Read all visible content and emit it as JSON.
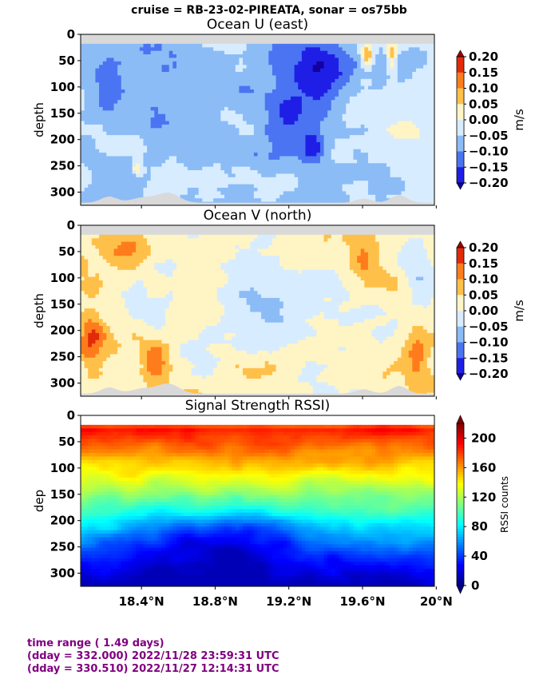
{
  "suptitle": "cruise = RB-23-02-PIREATA,  sonar = os75bb",
  "chart_data": [
    {
      "type": "heatmap",
      "title": "Ocean U (east)",
      "ylabel": "depth",
      "colorbar_label": "m/s",
      "colormap": "blue-white-red (diverging)",
      "ylim": [
        325,
        0
      ],
      "yticks": [
        0,
        50,
        100,
        150,
        200,
        250,
        300
      ],
      "xlim": [
        18.07,
        19.99
      ],
      "clim": [
        -0.2,
        0.2
      ],
      "colorbar_ticks": [
        "0.20",
        "0.15",
        "0.10",
        "0.05",
        "0.00",
        "−0.05",
        "−0.10",
        "−0.15",
        "−0.20"
      ],
      "colorbar_colors": [
        "#9e0000",
        "#e22a0a",
        "#ff7c1c",
        "#ffc04a",
        "#fff4c4",
        "#d8ecff",
        "#8cbcf6",
        "#4a74f2",
        "#1f1ee6",
        "#14009e"
      ],
      "features": "mostly weak westward flow (-0.05 to -0.10 m/s) with a strong westward core (< -0.15 m/s) near 19.3-19.4 N above 150 m and isolated eastward patches near 19.8 N"
    },
    {
      "type": "heatmap",
      "title": "Ocean V (north)",
      "ylabel": "depth",
      "colorbar_label": "m/s",
      "colormap": "blue-white-red (diverging)",
      "ylim": [
        325,
        0
      ],
      "yticks": [
        0,
        50,
        100,
        150,
        200,
        250,
        300
      ],
      "xlim": [
        18.07,
        19.99
      ],
      "clim": [
        -0.2,
        0.2
      ],
      "colorbar_ticks": [
        "0.20",
        "0.15",
        "0.10",
        "0.05",
        "0.00",
        "−0.05",
        "−0.10",
        "−0.15",
        "−0.20"
      ],
      "colorbar_colors": [
        "#9e0000",
        "#e22a0a",
        "#ff7c1c",
        "#ffc04a",
        "#fff4c4",
        "#d8ecff",
        "#8cbcf6",
        "#4a74f2",
        "#1f1ee6",
        "#14009e"
      ],
      "features": "northward flow (0.05-0.15 m/s) dominant west of 18.8 N and near 19.6-19.8 N, weak southward flow in the center"
    },
    {
      "type": "heatmap",
      "title": "Signal Strength RSSI)",
      "ylabel": "dep",
      "colorbar_label": "RSSI counts",
      "colormap": "jet",
      "ylim": [
        325,
        0
      ],
      "yticks": [
        0,
        50,
        100,
        150,
        200,
        250,
        300
      ],
      "xlim": [
        18.07,
        19.99
      ],
      "xticks": [
        18.4,
        18.8,
        19.2,
        19.6,
        20.0
      ],
      "xtick_labels": [
        "18.4°N",
        "18.8°N",
        "19.2°N",
        "19.6°N",
        "20°N"
      ],
      "clim": [
        0,
        220
      ],
      "colorbar_ticks": [
        "200",
        "160",
        "120",
        "80",
        "40",
        "0"
      ],
      "colorbar_tick_values": [
        200,
        160,
        120,
        80,
        40,
        0
      ],
      "features": "strong return (~170-200) near 30 m decreasing with depth to ~20-40 below 200 m"
    }
  ],
  "footer": {
    "line1": "time range ( 1.49 days)",
    "line2": "(dday = 332.000) 2022/11/28 23:59:31 UTC",
    "line3": "(dday = 330.510) 2022/11/27 12:14:31 UTC"
  },
  "colors": {
    "footer_text": "#800080",
    "no_data": "#d9d9d9"
  }
}
